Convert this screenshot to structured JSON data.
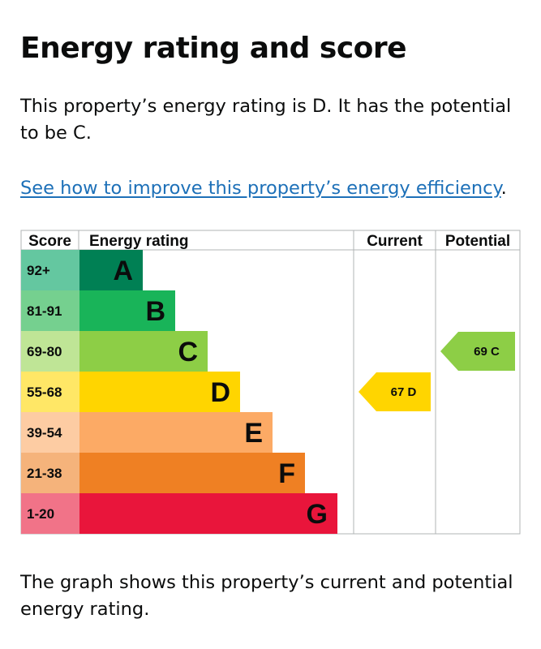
{
  "heading": "Energy rating and score",
  "intro": "This property’s energy rating is D. It has the potential to be C.",
  "improve_link": {
    "text": "See how to improve this property’s energy efficiency",
    "trailing": "."
  },
  "chart_data": {
    "type": "bar",
    "columns": {
      "score": "Score",
      "rating": "Energy rating",
      "current": "Current",
      "potential": "Potential"
    },
    "bands": [
      {
        "letter": "A",
        "range": "92+",
        "color": "#008054",
        "score_color": "#64c7a0"
      },
      {
        "letter": "B",
        "range": "81-91",
        "color": "#19b459",
        "score_color": "#75d08f"
      },
      {
        "letter": "C",
        "range": "69-80",
        "color": "#8dce46",
        "score_color": "#bfe596"
      },
      {
        "letter": "D",
        "range": "55-68",
        "color": "#ffd500",
        "score_color": "#ffe766"
      },
      {
        "letter": "E",
        "range": "39-54",
        "color": "#fcaa65",
        "score_color": "#fdcca3"
      },
      {
        "letter": "F",
        "range": "21-38",
        "color": "#ef8023",
        "score_color": "#f5b37b"
      },
      {
        "letter": "G",
        "range": "1-20",
        "color": "#e9153b",
        "score_color": "#f17388"
      }
    ],
    "current": {
      "score": 67,
      "letter": "D",
      "label": "67 D"
    },
    "potential": {
      "score": 69,
      "letter": "C",
      "label": "69 C"
    }
  },
  "footer": "The graph shows this property’s current and potential energy rating."
}
